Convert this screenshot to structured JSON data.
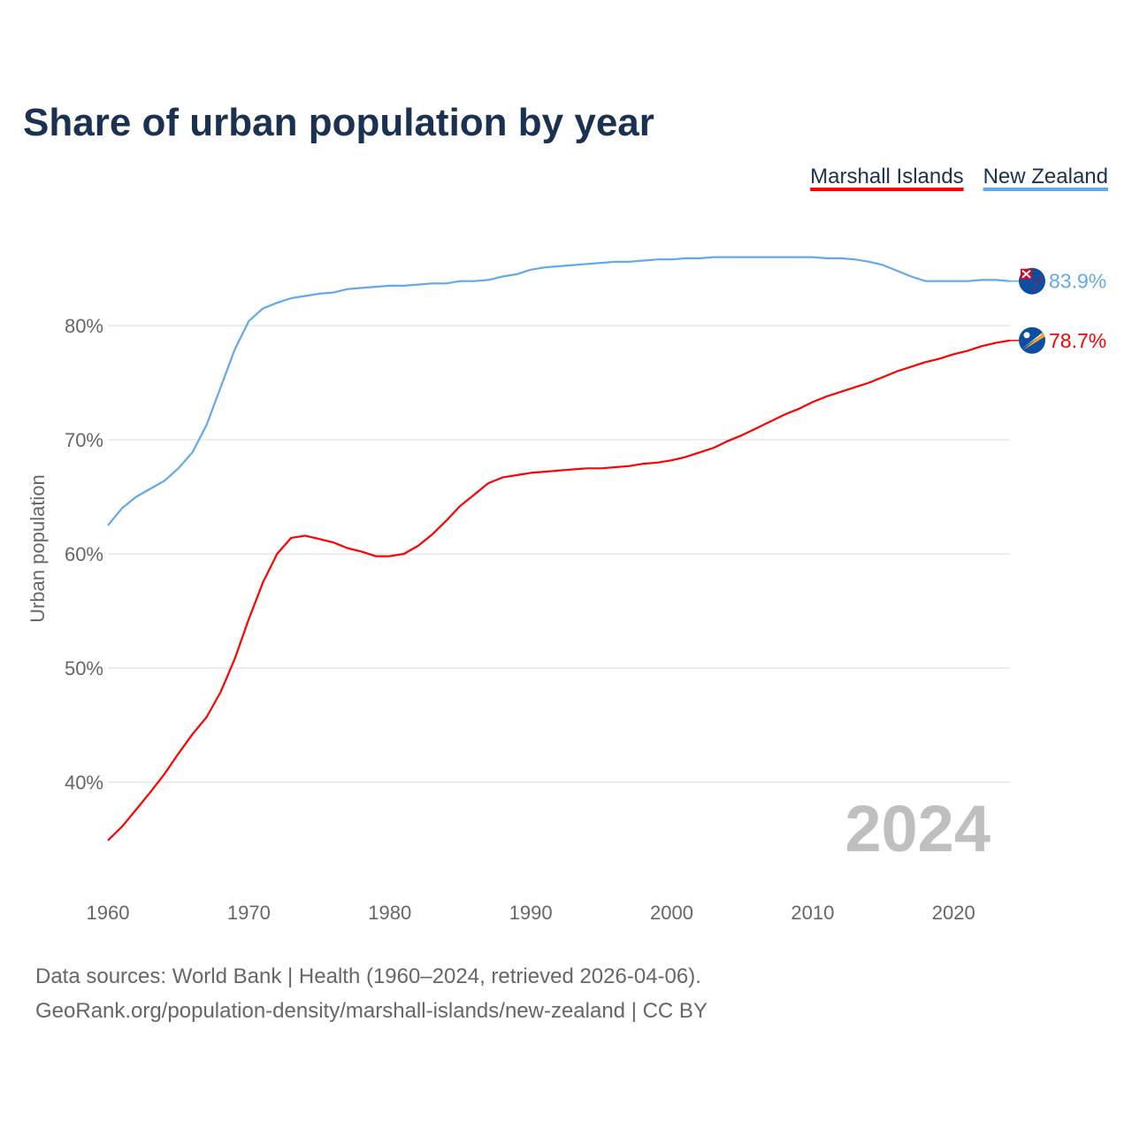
{
  "chart_data": {
    "type": "line",
    "title": "Share of urban population by year",
    "xlabel": "",
    "ylabel": "Urban population",
    "xlim": [
      1960,
      2024
    ],
    "ylim": [
      35,
      88
    ],
    "yticks": [
      40,
      50,
      60,
      70,
      80
    ],
    "ytick_labels": [
      "40%",
      "50%",
      "60%",
      "70%",
      "80%"
    ],
    "xticks": [
      1960,
      1970,
      1980,
      1990,
      2000,
      2010,
      2020
    ],
    "xtick_labels": [
      "1960",
      "1970",
      "1980",
      "1990",
      "2000",
      "2010",
      "2020"
    ],
    "grid": "horizontal",
    "legend_position": "top-right",
    "year_watermark": "2024",
    "x": [
      1960,
      1961,
      1962,
      1963,
      1964,
      1965,
      1966,
      1967,
      1968,
      1969,
      1970,
      1971,
      1972,
      1973,
      1974,
      1975,
      1976,
      1977,
      1978,
      1979,
      1980,
      1981,
      1982,
      1983,
      1984,
      1985,
      1986,
      1987,
      1988,
      1989,
      1990,
      1991,
      1992,
      1993,
      1994,
      1995,
      1996,
      1997,
      1998,
      1999,
      2000,
      2001,
      2002,
      2003,
      2004,
      2005,
      2006,
      2007,
      2008,
      2009,
      2010,
      2011,
      2012,
      2013,
      2014,
      2015,
      2016,
      2017,
      2018,
      2019,
      2020,
      2021,
      2022,
      2023,
      2024
    ],
    "series": [
      {
        "name": "Marshall Islands",
        "color": "#ff0000",
        "end_label": "78.7%",
        "flag": "marshall-islands-flag",
        "values": [
          34.9,
          36.1,
          37.6,
          39.1,
          40.7,
          42.5,
          44.2,
          45.7,
          47.9,
          50.8,
          54.3,
          57.5,
          60.0,
          61.4,
          61.6,
          61.3,
          61.0,
          60.5,
          60.2,
          59.8,
          59.8,
          60.0,
          60.7,
          61.7,
          62.9,
          64.2,
          65.2,
          66.2,
          66.7,
          66.9,
          67.1,
          67.2,
          67.3,
          67.4,
          67.5,
          67.5,
          67.6,
          67.7,
          67.9,
          68.0,
          68.2,
          68.5,
          68.9,
          69.3,
          69.9,
          70.4,
          71.0,
          71.6,
          72.2,
          72.7,
          73.3,
          73.8,
          74.2,
          74.6,
          75.0,
          75.5,
          76.0,
          76.4,
          76.8,
          77.1,
          77.5,
          77.8,
          78.2,
          78.5,
          78.7
        ]
      },
      {
        "name": "New Zealand",
        "color": "#62a8ea",
        "end_label": "83.9%",
        "flag": "new-zealand-flag",
        "values": [
          62.5,
          64.0,
          65.0,
          65.7,
          66.4,
          67.5,
          68.9,
          71.3,
          74.6,
          77.9,
          80.4,
          81.5,
          82.0,
          82.4,
          82.6,
          82.8,
          82.9,
          83.2,
          83.3,
          83.4,
          83.5,
          83.5,
          83.6,
          83.7,
          83.7,
          83.9,
          83.9,
          84.0,
          84.3,
          84.5,
          84.9,
          85.1,
          85.2,
          85.3,
          85.4,
          85.5,
          85.6,
          85.6,
          85.7,
          85.8,
          85.8,
          85.9,
          85.9,
          86.0,
          86.0,
          86.0,
          86.0,
          86.0,
          86.0,
          86.0,
          86.0,
          85.9,
          85.9,
          85.8,
          85.6,
          85.3,
          84.8,
          84.3,
          83.9,
          83.9,
          83.9,
          83.9,
          84.0,
          84.0,
          83.9
        ]
      }
    ]
  },
  "footer": {
    "line1": "Data sources: World Bank | Health (1960–2024, retrieved 2026-04-06).",
    "line2": "GeoRank.org/population-density/marshall-islands/new-zealand | CC BY"
  }
}
